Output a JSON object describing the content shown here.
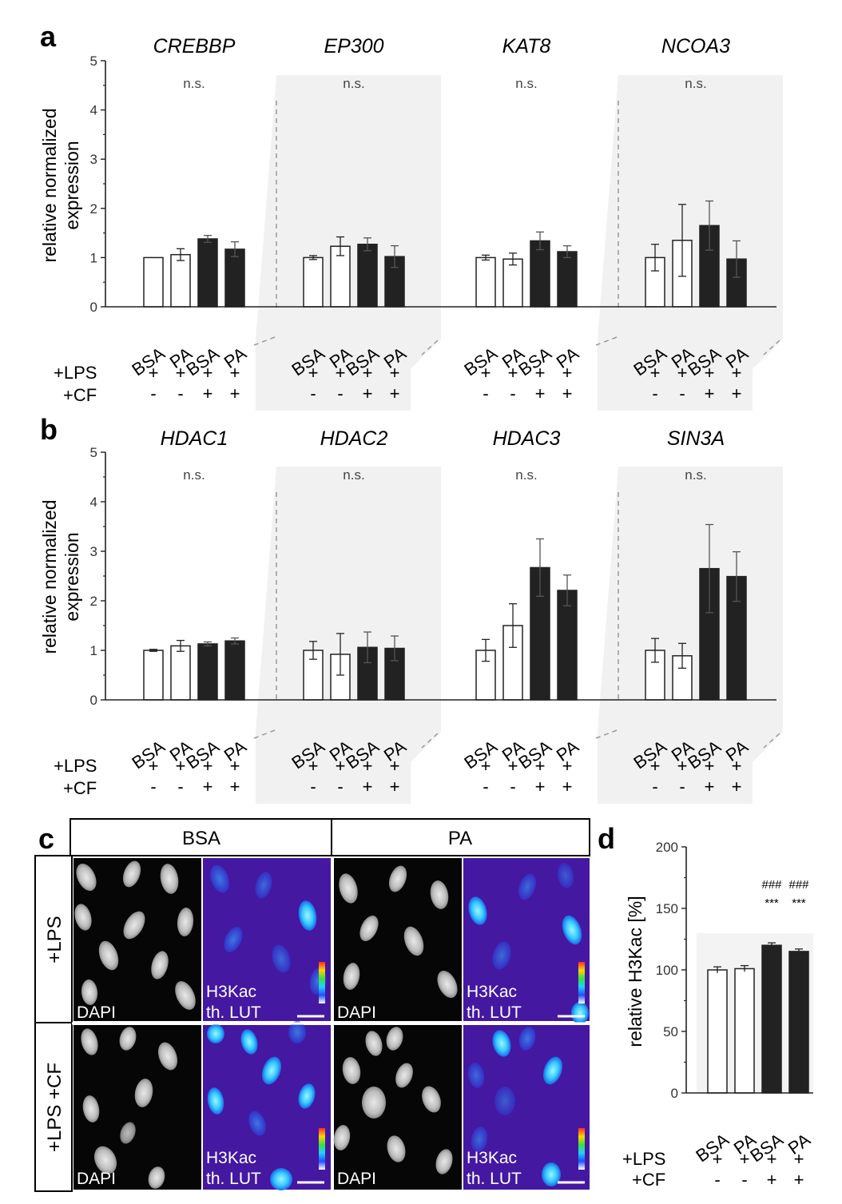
{
  "chart_data": [
    {
      "panel": "a",
      "type": "bar",
      "ylabel": "relative normalized expression",
      "ylim": [
        0,
        5
      ],
      "yticks": [
        "0",
        "1",
        "2",
        "3",
        "4",
        "5"
      ],
      "categories": [
        "BSA",
        "PA",
        "BSA",
        "PA"
      ],
      "lps_row": [
        "+",
        "+",
        "+",
        "+"
      ],
      "cf_row": [
        "-",
        "-",
        "+",
        "+"
      ],
      "bar_fill": [
        "white",
        "white",
        "black",
        "black"
      ],
      "groups": [
        {
          "gene": "CREBBP",
          "sig": "n.s.",
          "values": [
            1.0,
            1.06,
            1.38,
            1.17
          ],
          "errors": [
            0.0,
            0.12,
            0.07,
            0.15
          ]
        },
        {
          "gene": "EP300",
          "sig": "n.s.",
          "values": [
            1.0,
            1.23,
            1.27,
            1.02
          ],
          "errors": [
            0.04,
            0.19,
            0.13,
            0.22
          ]
        },
        {
          "gene": "KAT8",
          "sig": "n.s.",
          "values": [
            1.0,
            0.97,
            1.34,
            1.12
          ],
          "errors": [
            0.05,
            0.12,
            0.18,
            0.12
          ]
        },
        {
          "gene": "NCOA3",
          "sig": "n.s.",
          "values": [
            1.0,
            1.35,
            1.65,
            0.97
          ],
          "errors": [
            0.27,
            0.73,
            0.5,
            0.37
          ]
        }
      ]
    },
    {
      "panel": "b",
      "type": "bar",
      "ylabel": "relative normalized expression",
      "ylim": [
        0,
        5
      ],
      "yticks": [
        "0",
        "1",
        "2",
        "3",
        "4",
        "5"
      ],
      "categories": [
        "BSA",
        "PA",
        "BSA",
        "PA"
      ],
      "lps_row": [
        "+",
        "+",
        "+",
        "+"
      ],
      "cf_row": [
        "-",
        "-",
        "+",
        "+"
      ],
      "bar_fill": [
        "white",
        "white",
        "black",
        "black"
      ],
      "groups": [
        {
          "gene": "HDAC1",
          "sig": "n.s.",
          "values": [
            1.0,
            1.09,
            1.13,
            1.19
          ],
          "errors": [
            0.02,
            0.11,
            0.04,
            0.06
          ]
        },
        {
          "gene": "HDAC2",
          "sig": "n.s.",
          "values": [
            1.0,
            0.92,
            1.06,
            1.04
          ],
          "errors": [
            0.18,
            0.42,
            0.31,
            0.25
          ]
        },
        {
          "gene": "HDAC3",
          "sig": "n.s.",
          "values": [
            1.0,
            1.5,
            2.67,
            2.21
          ],
          "errors": [
            0.22,
            0.44,
            0.58,
            0.31
          ]
        },
        {
          "gene": "SIN3A",
          "sig": "n.s.",
          "values": [
            1.0,
            0.89,
            2.65,
            2.49
          ],
          "errors": [
            0.24,
            0.25,
            0.89,
            0.5
          ]
        }
      ]
    },
    {
      "panel": "d",
      "type": "bar",
      "ylabel": "relative H3Kac [%]",
      "ylim": [
        0,
        200
      ],
      "yticks": [
        "0",
        "50",
        "100",
        "150",
        "200"
      ],
      "categories": [
        "BSA",
        "PA",
        "BSA",
        "PA"
      ],
      "lps_row": [
        "+",
        "+",
        "+",
        "+"
      ],
      "cf_row": [
        "-",
        "-",
        "+",
        "+"
      ],
      "bar_fill": [
        "white",
        "white",
        "black",
        "black"
      ],
      "values": [
        100,
        101,
        120,
        115
      ],
      "errors": [
        2.5,
        2.5,
        2,
        2
      ],
      "annotations": [
        "",
        "",
        "###\n***",
        "###\n***"
      ]
    }
  ],
  "labels": {
    "panel_a": "a",
    "panel_b": "b",
    "panel_c": "c",
    "panel_d": "d",
    "lps": "+LPS",
    "cf": "+CF"
  },
  "micrographs": {
    "col_headers": [
      "BSA",
      "PA"
    ],
    "row_headers": [
      "+LPS",
      "+LPS +CF"
    ],
    "dapi_label": "DAPI",
    "h3kac_label": "H3Kac",
    "lut_label": "th. LUT"
  }
}
